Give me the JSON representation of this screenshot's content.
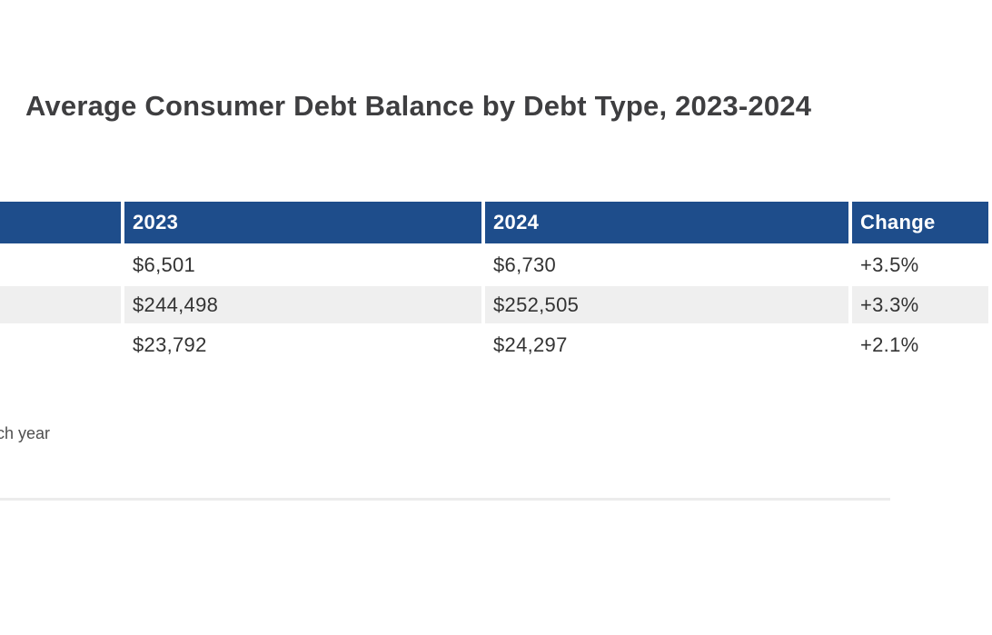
{
  "page": {
    "title": "Average Consumer Debt Balance by Debt Type, 2023-2024",
    "source_note_visible_text": "ch year"
  },
  "table": {
    "headers": [
      {
        "label": ""
      },
      {
        "label": "2023"
      },
      {
        "label": "2024"
      },
      {
        "label": "Change"
      }
    ],
    "rows": [
      {
        "label": "",
        "y2023": "$6,501",
        "y2024": "$6,730",
        "change": "+3.5%"
      },
      {
        "label": "",
        "y2023": "$244,498",
        "y2024": "$252,505",
        "change": "+3.3%"
      },
      {
        "label": "",
        "y2023": "$23,792",
        "y2024": "$24,297",
        "change": "+2.1%"
      }
    ]
  },
  "colors": {
    "header_bg": "#1e4d8b",
    "header_text": "#ffffff",
    "row_alt_bg": "#efefef",
    "cell_text": "#333333",
    "title_text": "#3e3e40",
    "footer_text": "#4f4f4f",
    "divider": "#ececec"
  },
  "chart_data": {
    "type": "table",
    "title": "Average Consumer Debt Balance by Debt Type, 2023-2024",
    "columns": [
      "2023",
      "2024",
      "Change"
    ],
    "row_labels_visible": [
      "",
      "",
      ""
    ],
    "rows": [
      {
        "y2023": 6501,
        "y2024": 6730,
        "change": "+3.5%"
      },
      {
        "y2023": 244498,
        "y2024": 252505,
        "change": "+3.3%"
      },
      {
        "y2023": 23792,
        "y2024": 24297,
        "change": "+2.1%"
      }
    ],
    "layout": {
      "left_label_column_clipped_offscreen": true,
      "change_column_clipped_at_right_edge": true,
      "header_style": "solid blue band, white bold text",
      "zebra_striping": "white / light gray"
    }
  }
}
